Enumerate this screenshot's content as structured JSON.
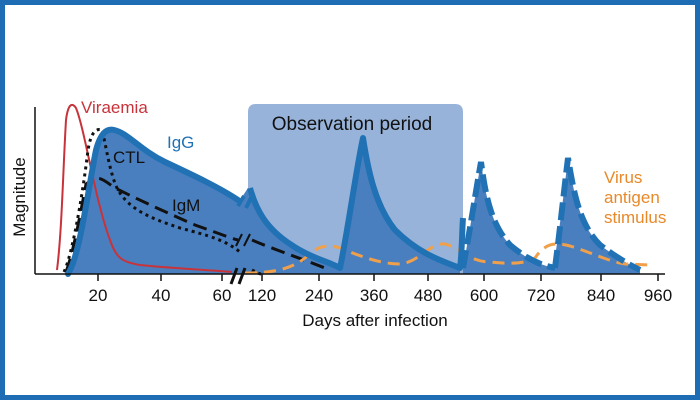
{
  "chart_data": {
    "type": "area",
    "title": "",
    "xlabel": "Days after infection",
    "ylabel": "Magnitude",
    "x_ticks": [
      "20",
      "40",
      "60",
      "120",
      "240",
      "360",
      "480",
      "600",
      "720",
      "840",
      "960"
    ],
    "x_axis_break": "between 60 and 120",
    "observation_period": {
      "label": "Observation period",
      "x_start_days": 120,
      "x_end_days": 550
    },
    "series": [
      {
        "name": "Viraemia",
        "style": "thin solid red line",
        "peak_day": 8,
        "peak_magnitude": 0.93
      },
      {
        "name": "CTL",
        "style": "black dotted line",
        "peak_day": 13,
        "peak_magnitude": 0.82
      },
      {
        "name": "IgM",
        "style": "black long-dashed line",
        "peak_day": 14,
        "peak_magnitude": 0.6
      },
      {
        "name": "IgG",
        "style": "thick blue line with filled area",
        "peak_day": 22,
        "peak_magnitude": 0.82,
        "secondary_peaks_days": [
          360,
          600,
          780
        ]
      },
      {
        "name": "Virus antigen stimulus",
        "style": "orange dashed line",
        "peak_days": [
          240,
          500,
          750
        ],
        "peak_magnitude": 0.2
      }
    ],
    "labels": {
      "viraemia": "Viraemia",
      "igg": "IgG",
      "ctl": "CTL",
      "igm": "IgM",
      "virus_antigen": [
        "Virus",
        "antigen",
        "stimulus"
      ]
    },
    "colors": {
      "frame": "#1e6db4",
      "igg_fill": "#4a7fbf",
      "igg_line": "#2171b5",
      "observation_box": "#97b3da",
      "viraemia": "#c8333a",
      "antigen": "#f0a04b",
      "antigen_text": "#e8892a"
    }
  }
}
